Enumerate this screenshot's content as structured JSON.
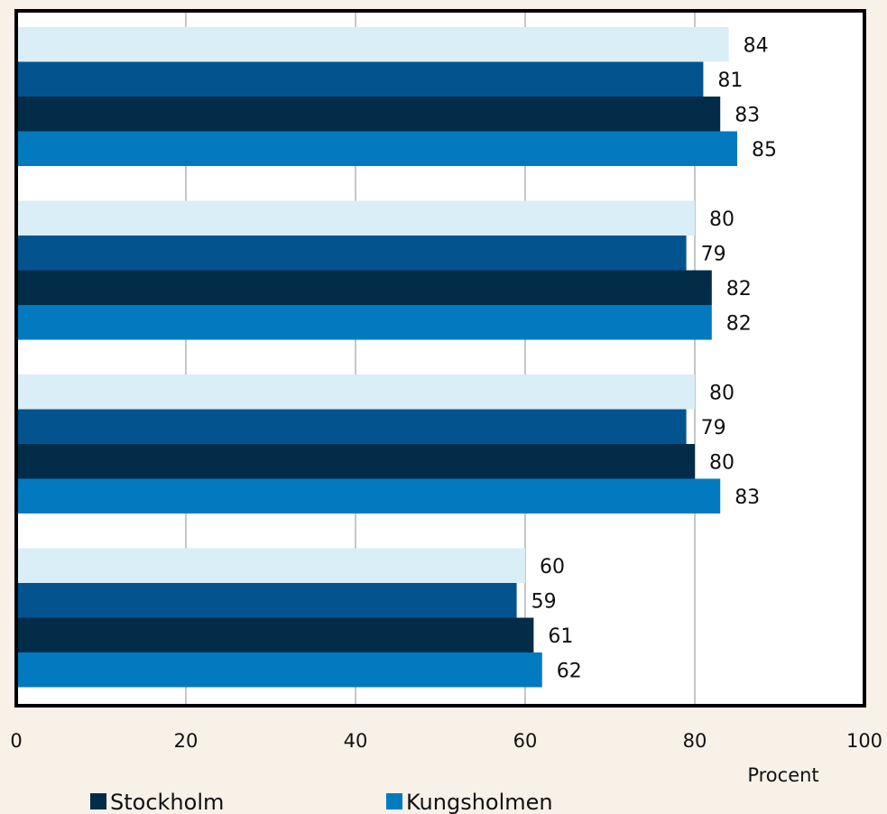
{
  "colors": {
    "background": "#f8f1e8",
    "plot_background": "#ffffff",
    "frame": "#000000",
    "grid": "#8c8c8c",
    "text": "#111111"
  },
  "chart_data": {
    "type": "bar",
    "orientation": "horizontal",
    "title": "",
    "xlabel": "Procent",
    "ylabel": "",
    "xlim": [
      0,
      100
    ],
    "x_ticks": [
      0,
      20,
      40,
      60,
      80,
      100
    ],
    "grid": true,
    "legend_position": "bottom",
    "categories": [
      "",
      "",
      "",
      ""
    ],
    "series": [
      {
        "name": "",
        "color": "#d9eef6",
        "values": [
          84,
          80,
          80,
          60
        ]
      },
      {
        "name": "",
        "color": "#03538f",
        "values": [
          81,
          79,
          79,
          59
        ]
      },
      {
        "name": "Stockholm",
        "color": "#022c47",
        "values": [
          83,
          82,
          80,
          61
        ]
      },
      {
        "name": "Kungsholmen",
        "color": "#037ac0",
        "values": [
          85,
          82,
          83,
          62
        ]
      }
    ],
    "data_labels": true
  }
}
